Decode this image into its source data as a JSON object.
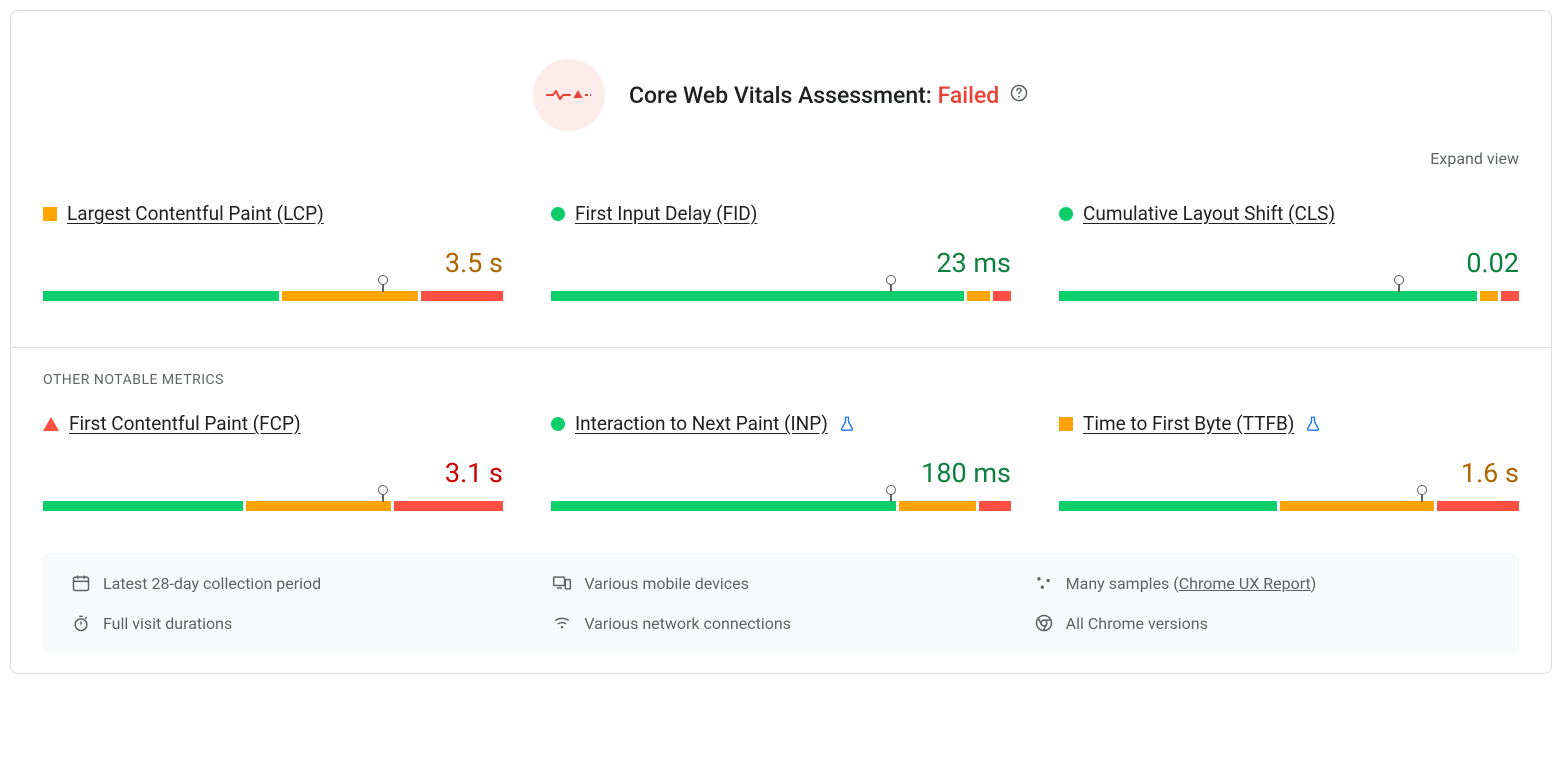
{
  "header": {
    "title_prefix": "Core Web Vitals Assessment: ",
    "status_text": "Failed",
    "status_color": "#e8710a",
    "icon_bg": "#fdecea",
    "icon_stroke": "#ea4335",
    "expand_label": "Expand view"
  },
  "section_label": "OTHER NOTABLE METRICS",
  "colors": {
    "good": "#0cce6b",
    "avg": "#ffa400",
    "poor": "#ff4e42",
    "value_good": "#0d803f",
    "value_avg": "#ad6500",
    "value_poor": "#cc0000"
  },
  "core_metrics": [
    {
      "name": "Largest Contentful Paint (LCP)",
      "marker_shape": "square",
      "marker_color": "#ffa400",
      "value_text": "3.5 s",
      "value_color": "#ad6500",
      "experimental": false,
      "dist": {
        "good_pct": 52,
        "avg_pct": 30,
        "poor_pct": 18
      },
      "pointer_pct": 74
    },
    {
      "name": "First Input Delay (FID)",
      "marker_shape": "circle",
      "marker_color": "#0cce6b",
      "value_text": "23 ms",
      "value_color": "#0d803f",
      "experimental": false,
      "dist": {
        "good_pct": 91,
        "avg_pct": 5,
        "poor_pct": 4
      },
      "pointer_pct": 74
    },
    {
      "name": "Cumulative Layout Shift (CLS)",
      "marker_shape": "circle",
      "marker_color": "#0cce6b",
      "value_text": "0.02",
      "value_color": "#0d803f",
      "experimental": false,
      "dist": {
        "good_pct": 92,
        "avg_pct": 4,
        "poor_pct": 4
      },
      "pointer_pct": 74
    }
  ],
  "other_metrics": [
    {
      "name": "First Contentful Paint (FCP)",
      "marker_shape": "triangle",
      "marker_color": "#ff4e42",
      "value_text": "3.1 s",
      "value_color": "#cc0000",
      "experimental": false,
      "dist": {
        "good_pct": 44,
        "avg_pct": 32,
        "poor_pct": 24
      },
      "pointer_pct": 74
    },
    {
      "name": "Interaction to Next Paint (INP)",
      "marker_shape": "circle",
      "marker_color": "#0cce6b",
      "value_text": "180 ms",
      "value_color": "#0d803f",
      "experimental": true,
      "dist": {
        "good_pct": 76,
        "avg_pct": 17,
        "poor_pct": 7
      },
      "pointer_pct": 74
    },
    {
      "name": "Time to First Byte (TTFB)",
      "marker_shape": "square",
      "marker_color": "#ffa400",
      "value_text": "1.6 s",
      "value_color": "#ad6500",
      "experimental": true,
      "dist": {
        "good_pct": 48,
        "avg_pct": 34,
        "poor_pct": 18
      },
      "pointer_pct": 79
    }
  ],
  "footer": [
    {
      "icon": "calendar",
      "text": "Latest 28-day collection period",
      "link": null
    },
    {
      "icon": "devices",
      "text": "Various mobile devices",
      "link": null
    },
    {
      "icon": "samples",
      "text": "Many samples (",
      "link": "Chrome UX Report",
      "suffix": ")"
    },
    {
      "icon": "timer",
      "text": "Full visit durations",
      "link": null
    },
    {
      "icon": "network",
      "text": "Various network connections",
      "link": null
    },
    {
      "icon": "chrome",
      "text": "All Chrome versions",
      "link": null
    }
  ]
}
